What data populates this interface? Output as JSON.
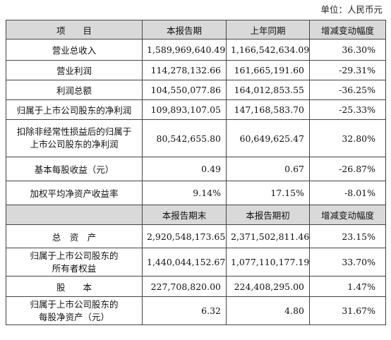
{
  "unit": "单位：人民币元",
  "header1": [
    "项　　目",
    "本报告期",
    "上年同期",
    "增减变动幅度"
  ],
  "rows1": [
    {
      "label": "营业总收入",
      "current": "1,589,969,640.49",
      "prior": "1,166,542,634.09",
      "change": "36.30%"
    },
    {
      "label": "营业利润",
      "current": "114,278,132.66",
      "prior": "161,665,191.60",
      "change": "-29.31%"
    },
    {
      "label": "利润总额",
      "current": "104,550,077.86",
      "prior": "164,012,853.55",
      "change": "-36.25%"
    },
    {
      "label": "归属于上市公司股东的净利润",
      "current": "109,893,107.05",
      "prior": "147,168,583.70",
      "change": "-25.33%"
    },
    {
      "label_line1": "扣除非经常性损益后的归属于",
      "label_line2": "上市公司股东的净利润",
      "current": "80,542,655.80",
      "prior": "60,649,625.47",
      "change": "32.80%"
    },
    {
      "label": "基本每股收益（元）",
      "current": "0.49",
      "prior": "0.67",
      "change": "-26.87%"
    },
    {
      "label": "加权平均净资产收益率",
      "current": "9.14%",
      "prior": "17.15%",
      "change": "-8.01%"
    }
  ],
  "header2": [
    "",
    "本报告期末",
    "本报告期初",
    "增减变动幅度"
  ],
  "rows2": [
    {
      "label": "总　资　产",
      "current": "2,920,548,173.65",
      "prior": "2,371,502,811.46",
      "change": "23.15%"
    },
    {
      "label_line1": "归属于上市公司股东的",
      "label_line2": "所有者权益",
      "current": "1,440,044,152.67",
      "prior": "1,077,110,177.19",
      "change": "33.70%"
    },
    {
      "label": "股　　本",
      "current": "227,708,820.00",
      "prior": "224,408,295.00",
      "change": "1.47%"
    },
    {
      "label_line1": "归属于上市公司股东的",
      "label_line2": "每股净资产（元）",
      "current": "6.32",
      "prior": "4.80",
      "change": "31.67%"
    }
  ]
}
